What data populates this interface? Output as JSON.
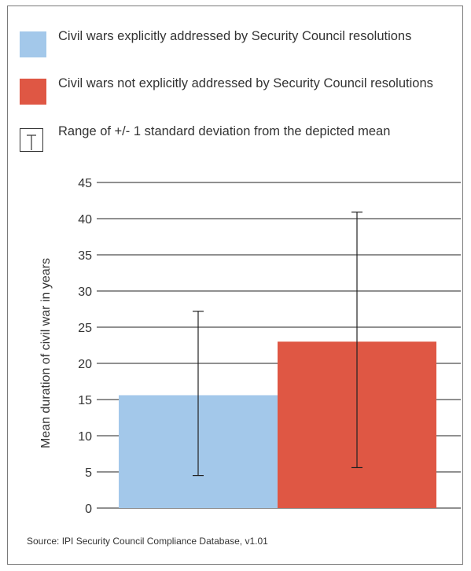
{
  "legend": {
    "items": [
      {
        "label": "Civil wars explicitly addressed by Security Council resolutions",
        "color": "#a3c8ea"
      },
      {
        "label": "Civil wars not explicitly addressed by Security Council resolutions",
        "color": "#df5744"
      },
      {
        "label": "Range of +/- 1 standard deviation from the depicted mean"
      }
    ]
  },
  "source": "Source: IPI Security Council Compliance Database, v1.01",
  "chart_data": {
    "type": "bar",
    "categories": [
      "Civil wars explicitly addressed by Security Council resolutions",
      "Civil wars not explicitly addressed by Security Council resolutions"
    ],
    "values": [
      15.6,
      23.0
    ],
    "error_low": [
      4.5,
      5.6
    ],
    "error_high": [
      27.2,
      40.9
    ],
    "colors": [
      "#a3c8ea",
      "#df5744"
    ],
    "ylabel": "Mean duration of civil war in years",
    "ylim": [
      0,
      45
    ],
    "yticks": [
      0,
      5,
      10,
      15,
      20,
      25,
      30,
      35,
      40,
      45
    ],
    "grid": true,
    "legend_position": "top"
  }
}
